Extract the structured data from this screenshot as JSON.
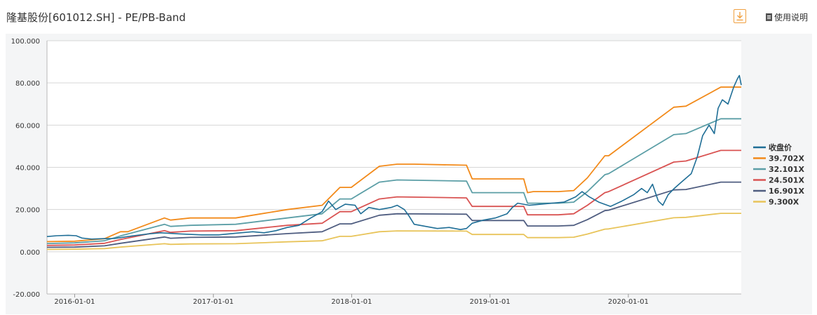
{
  "header": {
    "title": "隆基股份[601012.SH] - PE/PB-Band",
    "help_label": "使用说明",
    "download_icon": "download-icon",
    "help_icon": "document-icon"
  },
  "chart_data": {
    "type": "line",
    "title": "隆基股份[601012.SH] - PE/PB-Band",
    "xlabel": "",
    "ylabel": "",
    "ylim": [
      -20,
      100
    ],
    "yticks": [
      "100.000",
      "80.000",
      "60.000",
      "40.000",
      "20.000",
      "0.000",
      "-20.000"
    ],
    "xlim": [
      "2015-10-20",
      "2020-10-25"
    ],
    "xticks": [
      "2016-01-01",
      "2017-01-01",
      "2018-01-01",
      "2019-01-01",
      "2020-01-01"
    ],
    "grid": true,
    "legend_position": "right",
    "series": [
      {
        "name": "收盘价",
        "color": "#1f6e96",
        "points": [
          [
            "2015-10-20",
            7.2
          ],
          [
            "2015-11-15",
            7.6
          ],
          [
            "2015-12-15",
            7.8
          ],
          [
            "2016-01-05",
            7.6
          ],
          [
            "2016-01-20",
            6.5
          ],
          [
            "2016-02-15",
            6.0
          ],
          [
            "2016-03-15",
            6.2
          ],
          [
            "2016-04-15",
            6.3
          ],
          [
            "2016-06-01",
            7.5
          ],
          [
            "2016-07-15",
            8.5
          ],
          [
            "2016-08-15",
            9.0
          ],
          [
            "2016-10-01",
            8.5
          ],
          [
            "2016-12-01",
            8.0
          ],
          [
            "2017-01-15",
            8.0
          ],
          [
            "2017-03-01",
            8.8
          ],
          [
            "2017-04-15",
            9.5
          ],
          [
            "2017-05-15",
            9.0
          ],
          [
            "2017-06-15",
            10.0
          ],
          [
            "2017-07-15",
            11.5
          ],
          [
            "2017-08-15",
            12.5
          ],
          [
            "2017-09-15",
            16.0
          ],
          [
            "2017-10-15",
            19.0
          ],
          [
            "2017-11-01",
            24.0
          ],
          [
            "2017-11-20",
            20.0
          ],
          [
            "2017-12-15",
            22.5
          ],
          [
            "2018-01-10",
            22.0
          ],
          [
            "2018-01-25",
            18.0
          ],
          [
            "2018-02-15",
            21.0
          ],
          [
            "2018-03-15",
            20.0
          ],
          [
            "2018-04-15",
            21.0
          ],
          [
            "2018-05-01",
            22.0
          ],
          [
            "2018-05-20",
            20.0
          ],
          [
            "2018-06-01",
            17.0
          ],
          [
            "2018-06-15",
            13.0
          ],
          [
            "2018-07-15",
            12.0
          ],
          [
            "2018-08-15",
            11.0
          ],
          [
            "2018-09-15",
            11.5
          ],
          [
            "2018-10-15",
            10.5
          ],
          [
            "2018-10-31",
            11.0
          ],
          [
            "2018-11-15",
            13.5
          ],
          [
            "2018-12-15",
            15.0
          ],
          [
            "2019-01-15",
            16.0
          ],
          [
            "2019-02-15",
            18.0
          ],
          [
            "2019-03-01",
            21.0
          ],
          [
            "2019-03-15",
            23.0
          ],
          [
            "2019-04-15",
            22.0
          ],
          [
            "2019-05-15",
            22.5
          ],
          [
            "2019-06-15",
            23.0
          ],
          [
            "2019-07-15",
            23.5
          ],
          [
            "2019-08-15",
            26.0
          ],
          [
            "2019-09-01",
            28.5
          ],
          [
            "2019-09-20",
            26.0
          ],
          [
            "2019-10-15",
            23.5
          ],
          [
            "2019-11-15",
            21.5
          ],
          [
            "2019-12-15",
            24.0
          ],
          [
            "2020-01-15",
            27.0
          ],
          [
            "2020-02-05",
            30.0
          ],
          [
            "2020-02-20",
            28.0
          ],
          [
            "2020-03-05",
            32.0
          ],
          [
            "2020-03-20",
            24.0
          ],
          [
            "2020-04-01",
            22.0
          ],
          [
            "2020-04-15",
            27.0
          ],
          [
            "2020-05-01",
            30.0
          ],
          [
            "2020-05-20",
            33.0
          ],
          [
            "2020-06-15",
            37.0
          ],
          [
            "2020-07-01",
            45.0
          ],
          [
            "2020-07-15",
            55.0
          ],
          [
            "2020-08-01",
            60.0
          ],
          [
            "2020-08-15",
            56.0
          ],
          [
            "2020-08-25",
            68.0
          ],
          [
            "2020-09-05",
            72.0
          ],
          [
            "2020-09-20",
            70.0
          ],
          [
            "2020-10-05",
            78.0
          ],
          [
            "2020-10-15",
            82.0
          ],
          [
            "2020-10-20",
            83.5
          ],
          [
            "2020-10-25",
            79.0
          ]
        ]
      },
      {
        "name": "39.702X",
        "color": "#f28a1a",
        "points": [
          [
            "2015-10-20",
            4.8
          ],
          [
            "2016-01-01",
            5.0
          ],
          [
            "2016-03-20",
            6.2
          ],
          [
            "2016-05-01",
            9.5
          ],
          [
            "2016-05-20",
            9.5
          ],
          [
            "2016-08-25",
            16.0
          ],
          [
            "2016-09-10",
            15.0
          ],
          [
            "2016-11-01",
            16.0
          ],
          [
            "2017-03-01",
            16.0
          ],
          [
            "2017-07-15",
            20.0
          ],
          [
            "2017-10-15",
            22.0
          ],
          [
            "2017-12-01",
            30.5
          ],
          [
            "2017-12-31",
            30.5
          ],
          [
            "2018-03-15",
            40.5
          ],
          [
            "2018-05-01",
            41.5
          ],
          [
            "2018-06-15",
            41.5
          ],
          [
            "2018-10-31",
            41.0
          ],
          [
            "2018-11-15",
            34.5
          ],
          [
            "2019-03-31",
            34.5
          ],
          [
            "2019-04-10",
            28.0
          ],
          [
            "2019-04-25",
            28.5
          ],
          [
            "2019-06-30",
            28.5
          ],
          [
            "2019-08-10",
            29.0
          ],
          [
            "2019-09-15",
            35.0
          ],
          [
            "2019-10-31",
            45.5
          ],
          [
            "2019-11-10",
            45.5
          ],
          [
            "2020-04-30",
            68.5
          ],
          [
            "2020-06-01",
            69.0
          ],
          [
            "2020-09-01",
            78.0
          ],
          [
            "2020-10-25",
            78.0
          ]
        ]
      },
      {
        "name": "32.101X",
        "color": "#5b9ea6",
        "points": [
          [
            "2015-10-20",
            3.9
          ],
          [
            "2016-01-01",
            4.2
          ],
          [
            "2016-03-20",
            5.2
          ],
          [
            "2016-05-01",
            7.5
          ],
          [
            "2016-08-25",
            13.0
          ],
          [
            "2016-09-10",
            12.0
          ],
          [
            "2016-11-01",
            12.5
          ],
          [
            "2017-03-01",
            13.0
          ],
          [
            "2017-07-15",
            16.0
          ],
          [
            "2017-10-15",
            18.0
          ],
          [
            "2017-12-01",
            25.0
          ],
          [
            "2017-12-31",
            25.0
          ],
          [
            "2018-03-15",
            33.0
          ],
          [
            "2018-05-01",
            34.0
          ],
          [
            "2018-10-31",
            33.5
          ],
          [
            "2018-11-15",
            28.0
          ],
          [
            "2019-03-31",
            28.0
          ],
          [
            "2019-04-10",
            23.0
          ],
          [
            "2019-06-30",
            23.0
          ],
          [
            "2019-08-10",
            23.5
          ],
          [
            "2019-09-15",
            28.5
          ],
          [
            "2019-10-31",
            36.5
          ],
          [
            "2019-11-10",
            37.0
          ],
          [
            "2020-04-30",
            55.5
          ],
          [
            "2020-06-01",
            56.0
          ],
          [
            "2020-09-01",
            63.0
          ],
          [
            "2020-10-25",
            63.0
          ]
        ]
      },
      {
        "name": "24.501X",
        "color": "#d95352",
        "points": [
          [
            "2015-10-20",
            3.0
          ],
          [
            "2016-01-01",
            3.2
          ],
          [
            "2016-03-20",
            4.0
          ],
          [
            "2016-05-01",
            5.8
          ],
          [
            "2016-08-25",
            10.0
          ],
          [
            "2016-09-10",
            9.2
          ],
          [
            "2016-11-01",
            9.8
          ],
          [
            "2017-03-01",
            10.0
          ],
          [
            "2017-07-15",
            12.5
          ],
          [
            "2017-10-15",
            13.5
          ],
          [
            "2017-12-01",
            19.0
          ],
          [
            "2017-12-31",
            19.0
          ],
          [
            "2018-03-15",
            25.0
          ],
          [
            "2018-05-01",
            26.0
          ],
          [
            "2018-10-31",
            25.5
          ],
          [
            "2018-11-15",
            21.5
          ],
          [
            "2019-03-31",
            21.5
          ],
          [
            "2019-04-10",
            17.5
          ],
          [
            "2019-06-30",
            17.5
          ],
          [
            "2019-08-10",
            18.0
          ],
          [
            "2019-09-15",
            22.0
          ],
          [
            "2019-10-31",
            28.0
          ],
          [
            "2019-11-10",
            28.5
          ],
          [
            "2020-04-30",
            42.5
          ],
          [
            "2020-06-01",
            43.0
          ],
          [
            "2020-09-01",
            48.0
          ],
          [
            "2020-10-25",
            48.0
          ]
        ]
      },
      {
        "name": "16.901X",
        "color": "#4f5d80",
        "points": [
          [
            "2015-10-20",
            2.1
          ],
          [
            "2016-01-01",
            2.2
          ],
          [
            "2016-03-20",
            2.8
          ],
          [
            "2016-05-01",
            4.0
          ],
          [
            "2016-08-25",
            7.0
          ],
          [
            "2016-09-10",
            6.4
          ],
          [
            "2016-11-01",
            6.8
          ],
          [
            "2017-03-01",
            7.0
          ],
          [
            "2017-07-15",
            8.6
          ],
          [
            "2017-10-15",
            9.5
          ],
          [
            "2017-12-01",
            13.2
          ],
          [
            "2017-12-31",
            13.2
          ],
          [
            "2018-03-15",
            17.3
          ],
          [
            "2018-05-01",
            18.0
          ],
          [
            "2018-10-31",
            17.8
          ],
          [
            "2018-11-15",
            14.8
          ],
          [
            "2019-03-31",
            14.8
          ],
          [
            "2019-04-10",
            12.2
          ],
          [
            "2019-06-30",
            12.2
          ],
          [
            "2019-08-10",
            12.5
          ],
          [
            "2019-09-15",
            15.2
          ],
          [
            "2019-10-31",
            19.5
          ],
          [
            "2019-11-10",
            19.7
          ],
          [
            "2020-04-30",
            29.3
          ],
          [
            "2020-06-01",
            29.5
          ],
          [
            "2020-09-01",
            33.0
          ],
          [
            "2020-10-25",
            33.0
          ]
        ]
      },
      {
        "name": "9.300X",
        "color": "#e8c45a",
        "points": [
          [
            "2015-10-20",
            1.1
          ],
          [
            "2016-01-01",
            1.2
          ],
          [
            "2016-03-20",
            1.5
          ],
          [
            "2016-05-01",
            2.2
          ],
          [
            "2016-08-25",
            3.8
          ],
          [
            "2016-09-10",
            3.5
          ],
          [
            "2016-11-01",
            3.7
          ],
          [
            "2017-03-01",
            3.8
          ],
          [
            "2017-07-15",
            4.7
          ],
          [
            "2017-10-15",
            5.2
          ],
          [
            "2017-12-01",
            7.3
          ],
          [
            "2017-12-31",
            7.3
          ],
          [
            "2018-03-15",
            9.5
          ],
          [
            "2018-05-01",
            9.9
          ],
          [
            "2018-10-31",
            9.8
          ],
          [
            "2018-11-15",
            8.2
          ],
          [
            "2019-03-31",
            8.2
          ],
          [
            "2019-04-10",
            6.7
          ],
          [
            "2019-06-30",
            6.7
          ],
          [
            "2019-08-10",
            6.9
          ],
          [
            "2019-09-15",
            8.4
          ],
          [
            "2019-10-31",
            10.7
          ],
          [
            "2019-11-10",
            10.8
          ],
          [
            "2020-04-30",
            16.1
          ],
          [
            "2020-06-01",
            16.3
          ],
          [
            "2020-09-01",
            18.2
          ],
          [
            "2020-10-25",
            18.2
          ]
        ]
      }
    ]
  }
}
